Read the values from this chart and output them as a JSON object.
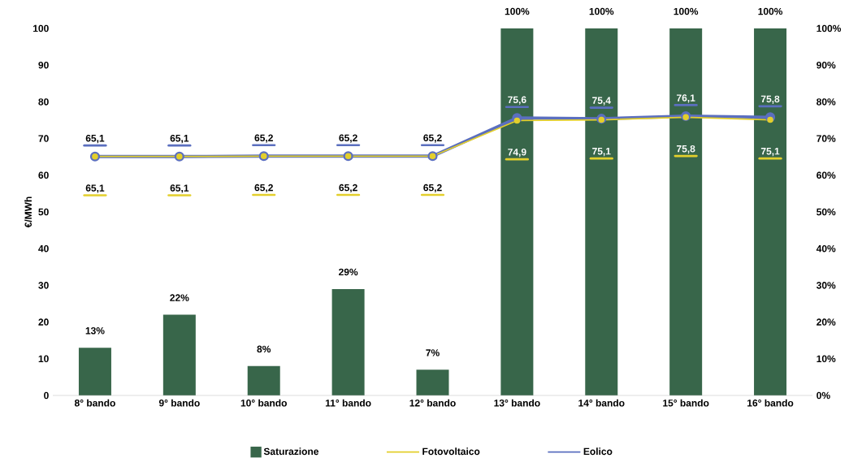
{
  "chart_data": {
    "type": "bar",
    "ylabel": "€/MWh",
    "categories": [
      "8° bando",
      "9° bando",
      "10° bando",
      "11° bando",
      "12° bando",
      "13° bando",
      "14° bando",
      "15° bando",
      "16° bando"
    ],
    "series": [
      {
        "name": "Saturazione",
        "type": "bar",
        "axis": "y2",
        "color": "#38664a",
        "values": [
          13,
          22,
          8,
          29,
          7,
          100,
          100,
          100,
          100
        ],
        "value_labels": [
          "13%",
          "22%",
          "8%",
          "29%",
          "7%",
          "100%",
          "100%",
          "100%",
          "100%"
        ]
      },
      {
        "name": "Fotovoltaico",
        "type": "line",
        "axis": "y",
        "color": "#e3cf2c",
        "values": [
          65.1,
          65.1,
          65.2,
          65.2,
          65.2,
          74.9,
          75.1,
          75.8,
          75.1
        ],
        "value_labels": [
          "65,1",
          "65,1",
          "65,2",
          "65,2",
          "65,2",
          "74,9",
          "75,1",
          "75,8",
          "75,1"
        ]
      },
      {
        "name": "Eolico",
        "type": "line",
        "axis": "y",
        "color": "#5b6fbf",
        "values": [
          65.1,
          65.1,
          65.2,
          65.2,
          65.2,
          75.6,
          75.4,
          76.1,
          75.8
        ],
        "value_labels": [
          "65,1",
          "65,1",
          "65,2",
          "65,2",
          "65,2",
          "75,6",
          "75,4",
          "76,1",
          "75,8"
        ]
      }
    ],
    "ylim": [
      0,
      100
    ],
    "yticks": [
      0,
      10,
      20,
      30,
      40,
      50,
      60,
      70,
      80,
      90,
      100
    ],
    "y2lim": [
      0,
      100
    ],
    "y2ticks": [
      {
        "value": 0,
        "label": "0%"
      },
      {
        "value": 10,
        "label": "10%"
      },
      {
        "value": 20,
        "label": "20%"
      },
      {
        "value": 30,
        "label": "30%"
      },
      {
        "value": 40,
        "label": "40%"
      },
      {
        "value": 50,
        "label": "50%"
      },
      {
        "value": 60,
        "label": "60%"
      },
      {
        "value": 70,
        "label": "70%"
      },
      {
        "value": 80,
        "label": "80%"
      },
      {
        "value": 90,
        "label": "90%"
      },
      {
        "value": 100,
        "label": "100%"
      }
    ],
    "legend": "bottom",
    "marker": "circle",
    "line_style": "solid",
    "grid": false
  }
}
